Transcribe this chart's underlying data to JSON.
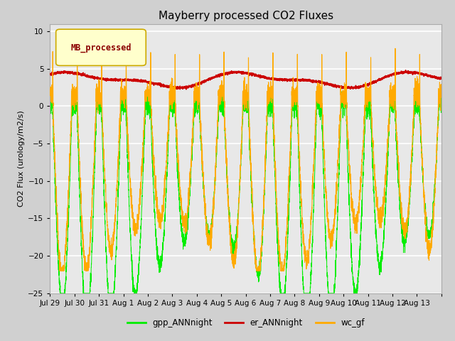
{
  "title": "Mayberry processed CO2 Fluxes",
  "ylabel": "CO2 Flux (urology/m2/s)",
  "ylim": [
    -25,
    11
  ],
  "yticks": [
    -25,
    -20,
    -15,
    -10,
    -5,
    0,
    5,
    10
  ],
  "fig_bg": "#d0d0d0",
  "plot_bg": "#e8e8e8",
  "legend_label": "MB_processed",
  "legend_fg": "#8B0000",
  "legend_bg": "#ffffcc",
  "legend_border": "#ccaa00",
  "line_green": "#00ee00",
  "line_red": "#cc0000",
  "line_orange": "#ffaa00",
  "n_days": 16,
  "points_per_day": 288,
  "xtick_labels": [
    "Jul 29",
    "Jul 30",
    "Jul 31",
    "Aug 1",
    "Aug 2",
    "Aug 3",
    "Aug 4",
    "Aug 5",
    "Aug 6",
    "Aug 7",
    "Aug 8",
    "Aug 9",
    "Aug 10",
    "Aug 11",
    "Aug 12",
    "Aug 13"
  ],
  "series_labels": [
    "gpp_ANNnight",
    "er_ANNnight",
    "wc_gf"
  ],
  "title_fontsize": 11,
  "axis_fontsize": 8,
  "tick_fontsize": 7.5
}
